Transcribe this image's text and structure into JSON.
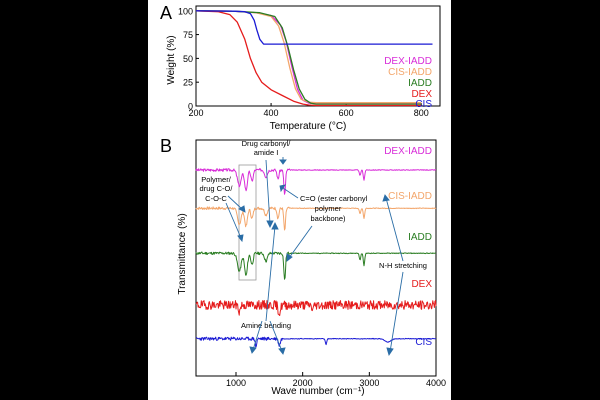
{
  "colors": {
    "background": "#000000",
    "panel": "#ffffff",
    "axis": "#000000",
    "dex_iadd": "#d82cd8",
    "cis_iadd": "#f3a66b",
    "iadd": "#2a7d22",
    "dex": "#e51c1c",
    "cis": "#1a1ad4",
    "arrow": "#2a6da6"
  },
  "chart_data": [
    {
      "panel": "A",
      "type": "line",
      "xlabel": "Temperature (°C)",
      "ylabel": "Weight (%)",
      "xlim": [
        200,
        850
      ],
      "ylim": [
        0,
        105
      ],
      "xticks": [
        200,
        400,
        600,
        800
      ],
      "yticks": [
        0,
        25,
        50,
        75,
        100
      ],
      "legend": [
        "DEX-IADD",
        "CIS-IADD",
        "IADD",
        "DEX",
        "CIS"
      ],
      "series": [
        {
          "name": "DEX-IADD",
          "color_key": "dex_iadd",
          "x": [
            200,
            300,
            360,
            400,
            425,
            440,
            455,
            470,
            485,
            500,
            520,
            600,
            800
          ],
          "y": [
            100,
            99.5,
            98,
            95,
            85,
            68,
            42,
            18,
            6,
            3,
            2.5,
            2.5,
            2.5
          ]
        },
        {
          "name": "CIS-IADD",
          "color_key": "cis_iadd",
          "x": [
            200,
            300,
            360,
            400,
            420,
            435,
            450,
            465,
            480,
            500,
            520,
            600,
            800
          ],
          "y": [
            100,
            99.5,
            98,
            94,
            84,
            66,
            40,
            18,
            7,
            4,
            3.5,
            3.5,
            3.5
          ]
        },
        {
          "name": "IADD",
          "color_key": "iadd",
          "x": [
            200,
            300,
            370,
            410,
            430,
            445,
            460,
            475,
            490,
            505,
            520,
            600,
            800
          ],
          "y": [
            100,
            99.5,
            98,
            94,
            82,
            62,
            38,
            18,
            7,
            3,
            2,
            2,
            2
          ]
        },
        {
          "name": "DEX",
          "color_key": "dex",
          "x": [
            200,
            260,
            290,
            310,
            330,
            345,
            360,
            375,
            400,
            430,
            460,
            485,
            500,
            520,
            600,
            800
          ],
          "y": [
            100,
            99,
            96,
            88,
            70,
            50,
            35,
            25,
            17,
            11,
            5,
            2,
            1,
            0.5,
            0.5,
            0.5
          ]
        },
        {
          "name": "CIS",
          "color_key": "cis",
          "x": [
            200,
            300,
            330,
            345,
            355,
            362,
            370,
            380,
            400,
            600,
            830
          ],
          "y": [
            100,
            99.5,
            99,
            97,
            90,
            80,
            70,
            65,
            65,
            65,
            65
          ]
        }
      ]
    },
    {
      "panel": "B",
      "type": "line",
      "xlabel": "Wave number (cm⁻¹)",
      "ylabel": "Transmittance (%)",
      "xlim": [
        400,
        4000
      ],
      "xticks": [
        1000,
        2000,
        3000,
        4000
      ],
      "legend": [
        "DEX-IADD",
        "CIS-IADD",
        "IADD",
        "DEX",
        "CIS"
      ],
      "annotations": [
        "Drug carbonyl/",
        "amide I",
        "Polymer/",
        "drug C-O/",
        "C-O-C",
        "C=O (ester carbonyl",
        "polymer",
        "backbone)",
        "N-H stretching",
        "Amine bending"
      ],
      "series": [
        {
          "name": "DEX-IADD",
          "color_key": "dex_iadd",
          "offset": 80,
          "amp": 8,
          "noise_seed": 3,
          "noise_amp": 1.2,
          "noise_x": [
            400,
            1800
          ],
          "dips": [
            [
              1050,
              14,
              40
            ],
            [
              1150,
              18,
              30
            ],
            [
              1240,
              10,
              25
            ],
            [
              1450,
              6,
              30
            ],
            [
              1630,
              8,
              20
            ],
            [
              1730,
              22,
              18
            ],
            [
              2860,
              5,
              15
            ],
            [
              2920,
              9,
              15
            ]
          ]
        },
        {
          "name": "CIS-IADD",
          "color_key": "cis_iadd",
          "offset": 63,
          "amp": 8,
          "noise_seed": 7,
          "noise_amp": 1.2,
          "noise_x": [
            400,
            1800
          ],
          "dips": [
            [
              1050,
              14,
              40
            ],
            [
              1150,
              16,
              30
            ],
            [
              1240,
              9,
              25
            ],
            [
              1450,
              6,
              30
            ],
            [
              1630,
              9,
              20
            ],
            [
              1730,
              20,
              18
            ],
            [
              2860,
              5,
              15
            ],
            [
              2920,
              9,
              15
            ]
          ]
        },
        {
          "name": "IADD",
          "color_key": "iadd",
          "offset": 43,
          "amp": 8,
          "noise_seed": 11,
          "noise_amp": 1.2,
          "noise_x": [
            400,
            1800
          ],
          "dips": [
            [
              1050,
              16,
              40
            ],
            [
              1150,
              20,
              30
            ],
            [
              1240,
              10,
              25
            ],
            [
              1450,
              7,
              30
            ],
            [
              1730,
              24,
              18
            ],
            [
              2860,
              6,
              15
            ],
            [
              2920,
              11,
              15
            ]
          ]
        },
        {
          "name": "DEX",
          "color_key": "dex",
          "offset": 20,
          "amp": 4,
          "noise_seed": 19,
          "noise_amp": 4,
          "noise_x": [
            400,
            4000
          ],
          "dips": [
            [
              1050,
              6,
              20
            ],
            [
              1650,
              7,
              25
            ],
            [
              2150,
              4,
              20
            ]
          ]
        },
        {
          "name": "CIS",
          "color_key": "cis",
          "offset": 5,
          "amp": 3,
          "noise_seed": 23,
          "noise_amp": 1.5,
          "noise_x": [
            400,
            1700
          ],
          "dips": [
            [
              1300,
              7,
              15
            ],
            [
              1650,
              6,
              20
            ],
            [
              2350,
              5,
              15
            ],
            [
              3280,
              3,
              60
            ]
          ]
        }
      ]
    }
  ]
}
